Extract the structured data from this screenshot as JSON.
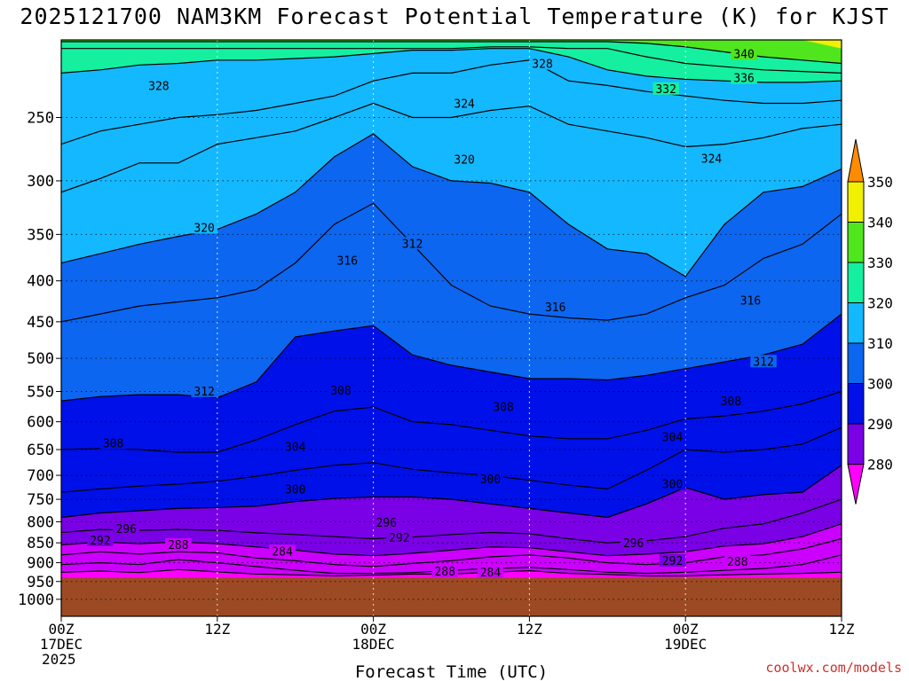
{
  "chart_data": {
    "type": "heatmap",
    "title": "2025121700 NAM3KM Forecast Potential Temperature (K) for KJST",
    "xlabel": "Forecast Time (UTC)",
    "ylabel": "",
    "x_ticks": [
      {
        "hour": 0,
        "lines": [
          "00Z",
          "17DEC",
          "2025"
        ]
      },
      {
        "hour": 12,
        "lines": [
          "12Z"
        ]
      },
      {
        "hour": 24,
        "lines": [
          "00Z",
          "18DEC"
        ]
      },
      {
        "hour": 36,
        "lines": [
          "12Z"
        ]
      },
      {
        "hour": 48,
        "lines": [
          "00Z",
          "19DEC"
        ]
      },
      {
        "hour": 60,
        "lines": [
          "12Z"
        ]
      }
    ],
    "xlim": [
      0,
      60
    ],
    "y_ticks": [
      250,
      300,
      350,
      400,
      450,
      500,
      550,
      600,
      650,
      700,
      750,
      800,
      850,
      900,
      950,
      1000
    ],
    "ylim_hpa": [
      200,
      1050
    ],
    "surface_pressure_hpa": 940,
    "colorbar": {
      "levels": [
        280,
        290,
        300,
        310,
        320,
        330,
        340,
        350
      ],
      "colors": [
        "#cc00ff",
        "#7a00e6",
        "#0010e8",
        "#0c66f0",
        "#14b8ff",
        "#14f0a0",
        "#50e61e",
        "#f0f000"
      ],
      "under_color": "#ff00ff",
      "over_color": "#ff8c00"
    },
    "isentropes": [
      {
        "theta": 280,
        "p": [
          925,
          922,
          926,
          918,
          924,
          930,
          932,
          935,
          933,
          930,
          930,
          925,
          921,
          928,
          931,
          935,
          935,
          932,
          930,
          928,
          925
        ]
      },
      {
        "theta": 284,
        "p": [
          905,
          900,
          905,
          892,
          900,
          910,
          920,
          928,
          928,
          926,
          920,
          915,
          912,
          918,
          925,
          928,
          925,
          920,
          915,
          905,
          880
        ]
      },
      {
        "theta": 288,
        "p": [
          880,
          872,
          878,
          872,
          875,
          888,
          895,
          905,
          910,
          902,
          895,
          885,
          880,
          888,
          900,
          905,
          900,
          885,
          880,
          865,
          840
        ]
      },
      {
        "theta": 292,
        "p": [
          855,
          848,
          852,
          848,
          852,
          860,
          868,
          878,
          882,
          876,
          868,
          860,
          862,
          872,
          882,
          878,
          872,
          858,
          852,
          835,
          805
        ]
      },
      {
        "theta": 296,
        "p": [
          825,
          818,
          820,
          818,
          820,
          826,
          830,
          835,
          840,
          836,
          830,
          825,
          828,
          840,
          850,
          845,
          835,
          815,
          805,
          780,
          750
        ]
      },
      {
        "theta": 300,
        "p": [
          790,
          780,
          775,
          770,
          768,
          765,
          755,
          748,
          745,
          745,
          750,
          760,
          770,
          780,
          790,
          760,
          725,
          750,
          740,
          735,
          680
        ]
      },
      {
        "theta": 304,
        "p": [
          735,
          728,
          722,
          718,
          712,
          702,
          690,
          680,
          675,
          688,
          695,
          700,
          710,
          720,
          728,
          690,
          650,
          655,
          650,
          640,
          610
        ]
      },
      {
        "theta": 308,
        "p": [
          650,
          648,
          650,
          655,
          655,
          632,
          605,
          582,
          575,
          600,
          605,
          615,
          625,
          630,
          630,
          615,
          595,
          590,
          582,
          570,
          550
        ]
      },
      {
        "theta": 312,
        "p": [
          565,
          558,
          555,
          555,
          560,
          535,
          470,
          462,
          455,
          495,
          510,
          520,
          530,
          530,
          532,
          525,
          515,
          505,
          495,
          480,
          440
        ]
      },
      {
        "theta": 316,
        "p": [
          450,
          440,
          430,
          425,
          420,
          410,
          380,
          340,
          320,
          360,
          405,
          430,
          440,
          445,
          448,
          440,
          420,
          405,
          375,
          360,
          330
        ]
      },
      {
        "theta": 320,
        "p": [
          380,
          370,
          360,
          352,
          345,
          330,
          310,
          280,
          262,
          288,
          300,
          302,
          310,
          340,
          365,
          370,
          395,
          340,
          310,
          305,
          290
        ]
      },
      {
        "theta": 324,
        "p": [
          310,
          298,
          285,
          285,
          270,
          265,
          260,
          250,
          240,
          250,
          250,
          245,
          242,
          255,
          260,
          265,
          272,
          270,
          265,
          258,
          255
        ]
      },
      {
        "theta": 328,
        "p": [
          270,
          260,
          255,
          250,
          248,
          245,
          240,
          235,
          225,
          220,
          220,
          215,
          212,
          225,
          228,
          232,
          235,
          238,
          240,
          240,
          238
        ]
      },
      {
        "theta": 332,
        "p": [
          220,
          218,
          215,
          214,
          212,
          212,
          211,
          210,
          208,
          206,
          206,
          205,
          205,
          210,
          218,
          222,
          224,
          225,
          226,
          226,
          225
        ]
      },
      {
        "theta": 336,
        "p": [
          205,
          205,
          205,
          205,
          205,
          205,
          205,
          205,
          205,
          205,
          205,
          204,
          204,
          205,
          205,
          210,
          214,
          216,
          218,
          219,
          220
        ]
      },
      {
        "theta": 340,
        "p": [
          201,
          201,
          201,
          201,
          201,
          201,
          201,
          201,
          201,
          201,
          201,
          201,
          201,
          201,
          201,
          202,
          204,
          207,
          210,
          212,
          214
        ]
      },
      {
        "theta": 350,
        "p": [
          200,
          200,
          200,
          200,
          200,
          200,
          200,
          200,
          200,
          200,
          200,
          200,
          200,
          200,
          200,
          200,
          200,
          200,
          200,
          200,
          205
        ]
      }
    ],
    "contour_labels": [
      {
        "text": "328",
        "hour": 7.5,
        "p": 228
      },
      {
        "text": "328",
        "hour": 37,
        "p": 214
      },
      {
        "text": "324",
        "hour": 31,
        "p": 240
      },
      {
        "text": "320",
        "hour": 31,
        "p": 282
      },
      {
        "text": "340",
        "hour": 52.5,
        "p": 208
      },
      {
        "text": "336",
        "hour": 52.5,
        "p": 223
      },
      {
        "text": "332",
        "hour": 46.5,
        "p": 230
      },
      {
        "text": "324",
        "hour": 50,
        "p": 281
      },
      {
        "text": "320",
        "hour": 11,
        "p": 343
      },
      {
        "text": "316",
        "hour": 22,
        "p": 377
      },
      {
        "text": "312",
        "hour": 27,
        "p": 359
      },
      {
        "text": "316",
        "hour": 38,
        "p": 431
      },
      {
        "text": "316",
        "hour": 53,
        "p": 423
      },
      {
        "text": "312",
        "hour": 11,
        "p": 549
      },
      {
        "text": "308",
        "hour": 21.5,
        "p": 548
      },
      {
        "text": "308",
        "hour": 34,
        "p": 574
      },
      {
        "text": "312",
        "hour": 54,
        "p": 504
      },
      {
        "text": "308",
        "hour": 51.5,
        "p": 565
      },
      {
        "text": "308",
        "hour": 4,
        "p": 638
      },
      {
        "text": "304",
        "hour": 18,
        "p": 644
      },
      {
        "text": "304",
        "hour": 47,
        "p": 626
      },
      {
        "text": "300",
        "hour": 18,
        "p": 728
      },
      {
        "text": "300",
        "hour": 33,
        "p": 707
      },
      {
        "text": "300",
        "hour": 47,
        "p": 717
      },
      {
        "text": "296",
        "hour": 5,
        "p": 816
      },
      {
        "text": "296",
        "hour": 25,
        "p": 801
      },
      {
        "text": "296",
        "hour": 44,
        "p": 850
      },
      {
        "text": "292",
        "hour": 3,
        "p": 843
      },
      {
        "text": "292",
        "hour": 26,
        "p": 837
      },
      {
        "text": "292",
        "hour": 47,
        "p": 894
      },
      {
        "text": "288",
        "hour": 9,
        "p": 854
      },
      {
        "text": "288",
        "hour": 29.5,
        "p": 922
      },
      {
        "text": "288",
        "hour": 52,
        "p": 896
      },
      {
        "text": "284",
        "hour": 17,
        "p": 870
      },
      {
        "text": "284",
        "hour": 33,
        "p": 924
      }
    ]
  },
  "footer": {
    "credit": "coolwx.com/models"
  }
}
